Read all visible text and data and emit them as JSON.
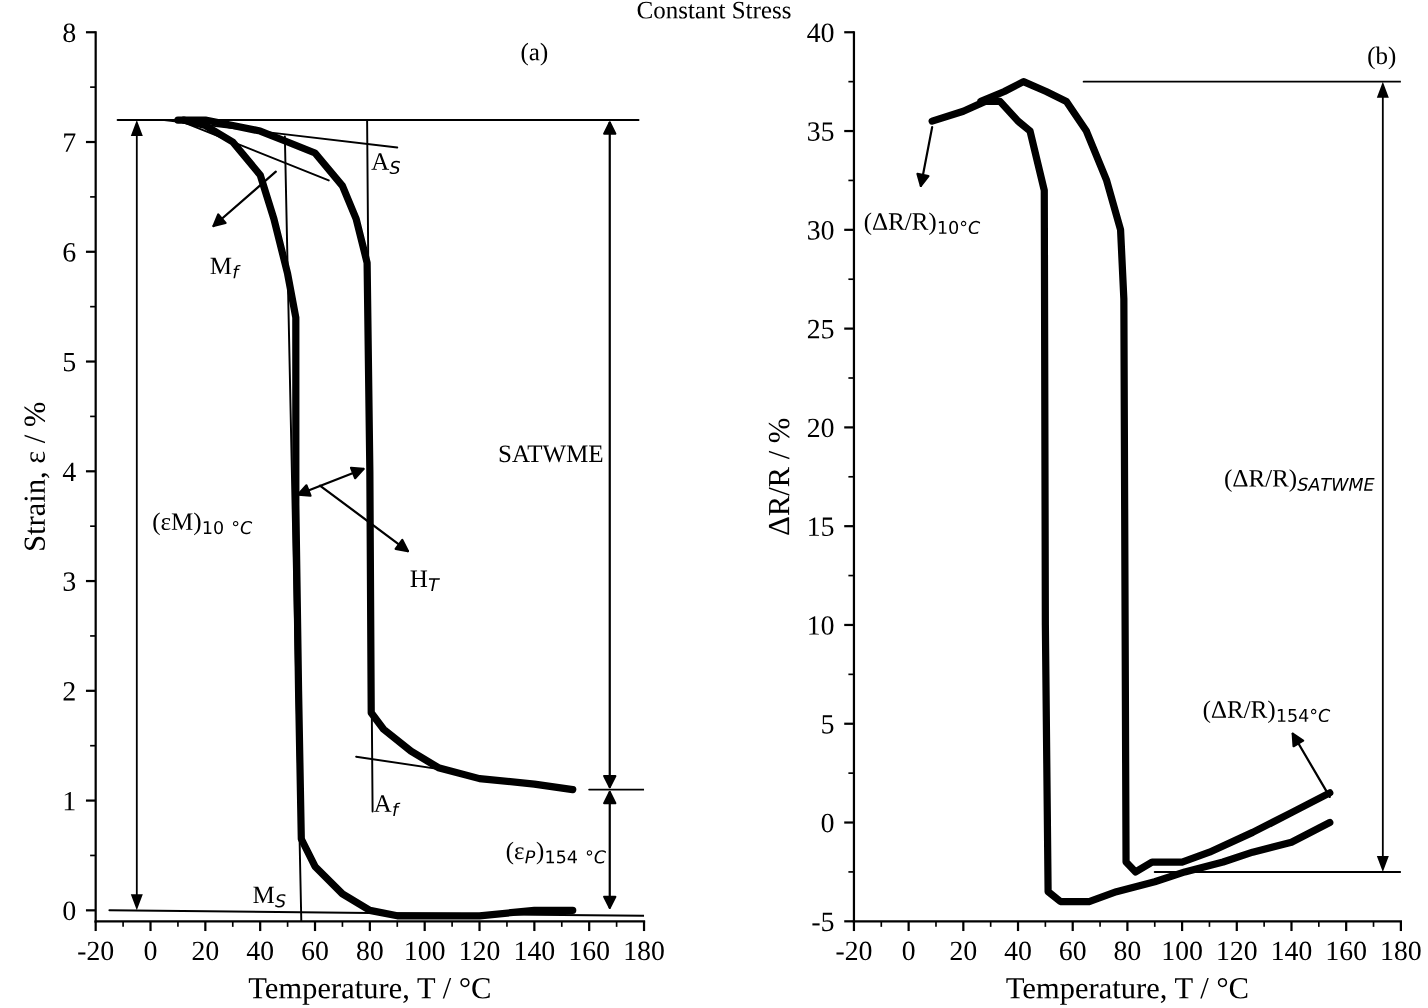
{
  "chart_data": [
    {
      "type": "line",
      "title": "Constant Stress",
      "xlabel": "Temperature, T / °C",
      "ylabel": "Strain, ε / %",
      "xlim": [
        -20,
        180
      ],
      "ylim": [
        -0.1,
        8
      ],
      "xticks": [
        -20,
        0,
        20,
        40,
        60,
        80,
        100,
        120,
        140,
        160,
        180
      ],
      "yticks": [
        0,
        1,
        2,
        3,
        4,
        5,
        6,
        7,
        8
      ],
      "series": [
        {
          "color": "#000000",
          "x": [
            154,
            140,
            120,
            100,
            90,
            80,
            70,
            60,
            55,
            54,
            53,
            53,
            50,
            45,
            40,
            30,
            20,
            12
          ],
          "values": [
            0.0,
            0.0,
            -0.05,
            -0.05,
            -0.05,
            0.0,
            0.15,
            0.4,
            0.65,
            2,
            3.7,
            5.4,
            5.8,
            6.3,
            6.7,
            7.0,
            7.15,
            7.2
          ]
        },
        {
          "color": "#000000",
          "x": [
            10,
            20,
            30,
            40,
            50,
            60,
            70,
            75,
            79,
            80,
            80.5,
            85,
            95,
            105,
            120,
            140,
            154
          ],
          "values": [
            7.2,
            7.2,
            7.15,
            7.1,
            7.0,
            6.9,
            6.6,
            6.3,
            5.9,
            4,
            1.8,
            1.65,
            1.45,
            1.3,
            1.2,
            1.15,
            1.1
          ]
        },
        {
          "color": "#000000",
          "x": [
            -12,
            178
          ],
          "values": [
            7.2,
            7.2
          ]
        },
        {
          "color": "#000000",
          "x": [
            5,
            90
          ],
          "values": [
            7.2,
            6.95
          ]
        },
        {
          "color": "#000000",
          "x": [
            10,
            65
          ],
          "values": [
            7.2,
            6.65
          ]
        },
        {
          "color": "#000000",
          "x": [
            49,
            55
          ],
          "values": [
            7.05,
            -0.1
          ]
        },
        {
          "color": "#000000",
          "x": [
            79,
            81
          ],
          "values": [
            7.2,
            0.9
          ]
        },
        {
          "color": "#000000",
          "x": [
            75,
            115
          ],
          "values": [
            1.4,
            1.25
          ]
        },
        {
          "color": "#000000",
          "x": [
            -15,
            180
          ],
          "values": [
            0,
            -0.05
          ]
        },
        {
          "color": "#000000",
          "x": [
            160,
            180
          ],
          "values": [
            1.1,
            1.1
          ]
        }
      ],
      "annotations": [
        "(a)",
        "A$_{S}$",
        "M$_{f}$",
        "SATWME",
        "(εM)$_{10}$ $_{°C}$",
        "H$_{T}$",
        "A$_{f}$",
        "(ε$_{P}$)$_{154}$ $_{°C}$",
        "M$_{S}$"
      ]
    },
    {
      "type": "line",
      "xlabel": "Temperature, T / °C",
      "ylabel": "ΔR/R / %",
      "xlim": [
        -20,
        180
      ],
      "ylim": [
        -5,
        40
      ],
      "xticks": [
        -20,
        0,
        20,
        40,
        60,
        80,
        100,
        120,
        140,
        160,
        180
      ],
      "yticks": [
        -5,
        0,
        5,
        10,
        15,
        20,
        25,
        30,
        35,
        40
      ],
      "series": [
        {
          "color": "#000000",
          "x": [
            8.6,
            20,
            28,
            33.4,
            40,
            44.4,
            49.6,
            50,
            51,
            55.5,
            60,
            66,
            76,
            90,
            101,
            115,
            125.8,
            140,
            154
          ],
          "values": [
            35.5,
            36,
            36.5,
            36.5,
            35.5,
            35,
            32,
            10,
            -3.5,
            -4,
            -4,
            -4,
            -3.5,
            -3,
            -2.5,
            -2,
            -1.5,
            -1,
            0
          ]
        },
        {
          "color": "#000000",
          "x": [
            26.4,
            35,
            42,
            50.3,
            57.7,
            65,
            72.4,
            77.5,
            78.7,
            79.5,
            83,
            89,
            100,
            110,
            125.8,
            140,
            154
          ],
          "values": [
            36.5,
            37,
            37.5,
            37,
            36.5,
            35,
            32.5,
            30,
            26.5,
            -2,
            -2.5,
            -2,
            -2,
            -1.5,
            -0.5,
            0.5,
            1.5
          ]
        },
        {
          "color": "#000000",
          "x": [
            64,
            180
          ],
          "values": [
            37.5,
            37.5
          ]
        },
        {
          "color": "#000000",
          "x": [
            90,
            180
          ],
          "values": [
            -2.5,
            -2.5
          ]
        }
      ],
      "annotations": [
        "(b)",
        "(ΔR/R)$_{10°C}$",
        "(ΔR/R)$_{SATWME}$",
        "(ΔR/R)$_{154°C}$"
      ]
    }
  ]
}
